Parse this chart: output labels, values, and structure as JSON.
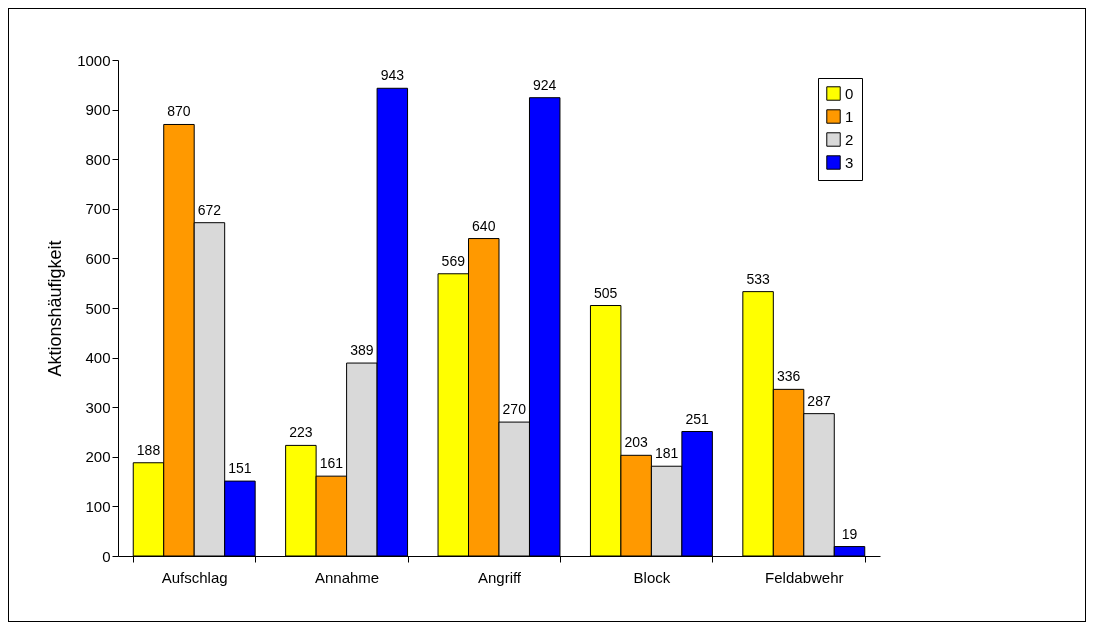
{
  "chart_data": {
    "type": "bar",
    "ylabel": "Aktionshäufigkeit",
    "categories": [
      "Aufschlag",
      "Annahme",
      "Angriff",
      "Block",
      "Feldabwehr"
    ],
    "series": [
      {
        "name": "0",
        "color": "#ffff00",
        "values": [
          188,
          223,
          569,
          505,
          533
        ]
      },
      {
        "name": "1",
        "color": "#ff9900",
        "values": [
          870,
          161,
          640,
          203,
          336
        ]
      },
      {
        "name": "2",
        "color": "#d9d9d9",
        "values": [
          672,
          389,
          270,
          181,
          287
        ]
      },
      {
        "name": "3",
        "color": "#0000ff",
        "values": [
          151,
          943,
          924,
          251,
          19
        ]
      }
    ],
    "ylim": [
      0,
      1000
    ],
    "yticks": [
      0,
      100,
      200,
      300,
      400,
      500,
      600,
      700,
      800,
      900,
      1000
    ],
    "grid": false,
    "legend": "top right",
    "data_labels": true
  }
}
